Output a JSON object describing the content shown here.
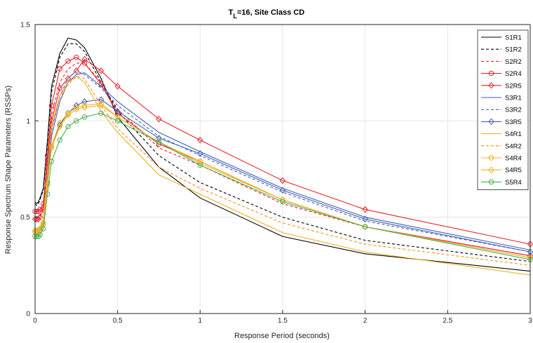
{
  "chart_data": {
    "type": "line",
    "title_main": "T",
    "title_sub": "L",
    "title_rest": "=16, Site Class CD",
    "xlabel": "Response Period (seconds)",
    "ylabel": "Response Spectrum Shape Parameters (RSSPs)",
    "xlim": [
      0,
      3
    ],
    "ylim": [
      0,
      1.5
    ],
    "xticks": [
      "0",
      "0.5",
      "1",
      "1.5",
      "2",
      "2.5",
      "3"
    ],
    "yticks": [
      "0",
      "0.5",
      "1",
      "1.5"
    ],
    "grid": true,
    "legend_position": "top-right",
    "x": [
      0,
      0.01,
      0.02,
      0.03,
      0.05,
      0.075,
      0.1,
      0.15,
      0.2,
      0.25,
      0.3,
      0.4,
      0.5,
      0.75,
      1,
      1.5,
      2,
      3
    ],
    "series": [
      {
        "name": "S1R1",
        "color": "#000000",
        "dash": "",
        "marker": "none",
        "values": [
          0.58,
          0.57,
          0.58,
          0.6,
          0.65,
          0.9,
          1.18,
          1.35,
          1.43,
          1.42,
          1.38,
          1.22,
          1.02,
          0.76,
          0.6,
          0.4,
          0.31,
          0.22
        ]
      },
      {
        "name": "S1R2",
        "color": "#000000",
        "dash": "4,3",
        "marker": "none",
        "values": [
          0.57,
          0.56,
          0.57,
          0.59,
          0.64,
          0.88,
          1.15,
          1.33,
          1.4,
          1.4,
          1.36,
          1.2,
          1.05,
          0.82,
          0.68,
          0.5,
          0.38,
          0.27
        ]
      },
      {
        "name": "S2R2",
        "color": "#e8222c",
        "dash": "4,3",
        "marker": "none",
        "values": [
          0.5,
          0.5,
          0.5,
          0.51,
          0.55,
          0.8,
          1.03,
          1.2,
          1.27,
          1.3,
          1.3,
          1.2,
          1.06,
          0.86,
          0.77,
          0.57,
          0.45,
          0.3
        ]
      },
      {
        "name": "S2R4",
        "color": "#e8222c",
        "dash": "",
        "marker": "circle",
        "values": [
          0.53,
          0.53,
          0.53,
          0.54,
          0.57,
          0.82,
          1.08,
          1.27,
          1.31,
          1.33,
          1.3,
          1.19,
          1.04,
          0.88,
          0.79,
          0.59,
          0.45,
          0.3
        ]
      },
      {
        "name": "S2R5",
        "color": "#e8222c",
        "dash": "",
        "marker": "diamond",
        "values": [
          0.49,
          0.49,
          0.49,
          0.5,
          0.54,
          0.78,
          1.0,
          1.17,
          1.22,
          1.26,
          1.32,
          1.26,
          1.18,
          1.01,
          0.9,
          0.69,
          0.54,
          0.36
        ]
      },
      {
        "name": "S3R1",
        "color": "#3f5fb4",
        "dash": "",
        "marker": "none",
        "values": [
          0.42,
          0.42,
          0.42,
          0.43,
          0.47,
          0.7,
          0.92,
          1.1,
          1.2,
          1.24,
          1.25,
          1.18,
          1.1,
          0.94,
          0.84,
          0.65,
          0.5,
          0.33
        ]
      },
      {
        "name": "S3R2",
        "color": "#3f5fb4",
        "dash": "4,3",
        "marker": "none",
        "values": [
          0.44,
          0.44,
          0.44,
          0.45,
          0.49,
          0.72,
          0.95,
          1.13,
          1.22,
          1.26,
          1.24,
          1.17,
          1.08,
          0.92,
          0.82,
          0.63,
          0.48,
          0.32
        ]
      },
      {
        "name": "S3R5",
        "color": "#3f5fb4",
        "dash": "",
        "marker": "diamond",
        "values": [
          0.43,
          0.43,
          0.43,
          0.44,
          0.47,
          0.68,
          0.86,
          0.98,
          1.04,
          1.08,
          1.1,
          1.11,
          1.05,
          0.91,
          0.83,
          0.64,
          0.49,
          0.32
        ]
      },
      {
        "name": "S4R1",
        "color": "#edb120",
        "dash": "",
        "marker": "none",
        "values": [
          0.44,
          0.44,
          0.44,
          0.45,
          0.49,
          0.73,
          0.98,
          1.13,
          1.2,
          1.23,
          1.2,
          1.05,
          0.94,
          0.72,
          0.62,
          0.42,
          0.32,
          0.2
        ]
      },
      {
        "name": "S4R2",
        "color": "#ff8c1a",
        "dash": "4,3",
        "marker": "none",
        "values": [
          0.43,
          0.43,
          0.43,
          0.44,
          0.48,
          0.72,
          0.96,
          1.12,
          1.19,
          1.23,
          1.22,
          1.08,
          0.96,
          0.76,
          0.65,
          0.47,
          0.36,
          0.25
        ]
      },
      {
        "name": "S4R4",
        "color": "#edb120",
        "dash": "",
        "marker": "circle",
        "values": [
          0.42,
          0.42,
          0.42,
          0.43,
          0.46,
          0.67,
          0.87,
          0.99,
          1.04,
          1.07,
          1.08,
          1.09,
          1.02,
          0.89,
          0.79,
          0.59,
          0.45,
          0.29
        ]
      },
      {
        "name": "S4R5",
        "color": "#edb120",
        "dash": "",
        "marker": "diamond",
        "values": [
          0.43,
          0.43,
          0.43,
          0.44,
          0.47,
          0.67,
          0.86,
          0.97,
          1.03,
          1.06,
          1.07,
          1.08,
          1.02,
          0.89,
          0.78,
          0.59,
          0.45,
          0.29
        ]
      },
      {
        "name": "S5R4",
        "color": "#4caf50",
        "dash": "",
        "marker": "circle",
        "values": [
          0.4,
          0.4,
          0.4,
          0.41,
          0.44,
          0.62,
          0.79,
          0.9,
          0.97,
          1.0,
          1.02,
          1.04,
          1.0,
          0.89,
          0.77,
          0.58,
          0.45,
          0.28
        ]
      }
    ]
  }
}
